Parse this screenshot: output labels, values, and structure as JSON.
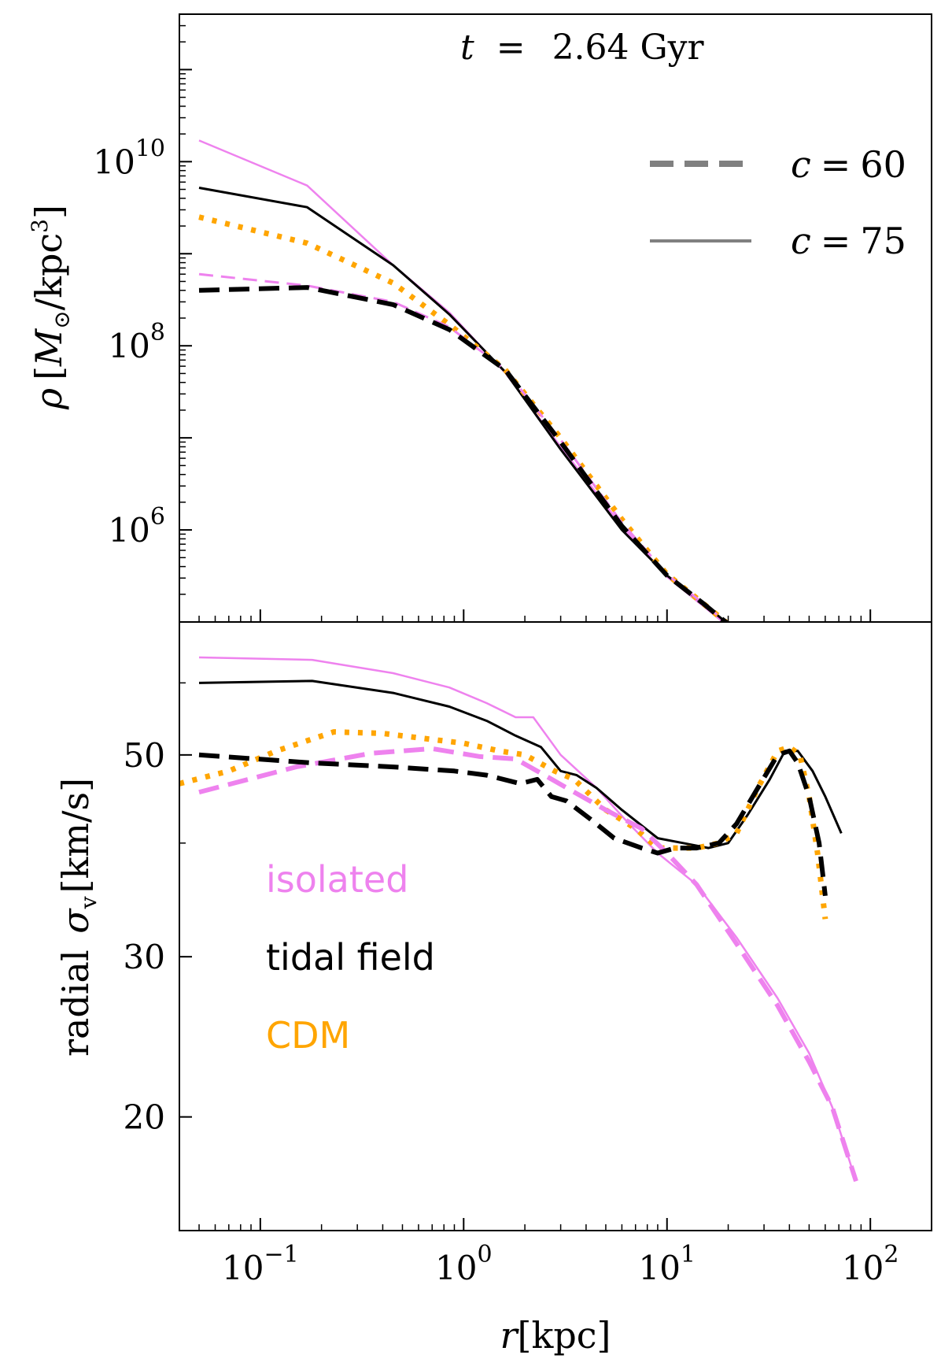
{
  "chart_data": [
    {
      "type": "line",
      "panel": "top",
      "xscale": "log",
      "yscale": "log",
      "xlim": [
        0.04,
        200
      ],
      "ylim": [
        100000,
        400000000000
      ],
      "yticks": [
        {
          "value": 1000000,
          "base": "10",
          "exp": "6"
        },
        {
          "value": 100000000,
          "base": "10",
          "exp": "8"
        },
        {
          "value": 10000000000,
          "base": "10",
          "exp": "10"
        }
      ],
      "ylabel": {
        "symbol": "ρ",
        "unit_prefix": "[",
        "unit_m": "M",
        "unit_sub": "⊙",
        "unit_mid": "/kpc",
        "unit_sup": "3",
        "unit_suffix": "]"
      },
      "annotation": {
        "var": "t",
        "eq": "=",
        "value": "2.64 Gyr"
      },
      "legend": [
        {
          "symbol": "c",
          "eq": "=",
          "value": "60",
          "style": "dashed",
          "color": "#808080"
        },
        {
          "symbol": "c",
          "eq": "=",
          "value": "75",
          "style": "solid",
          "color": "#808080"
        }
      ],
      "series": [
        {
          "name": "isolated c=75",
          "color": "#EE82EE",
          "style": "solid",
          "width": 2.5,
          "x": [
            0.05,
            0.17,
            0.45,
            0.85,
            1.6,
            3.0,
            6.0,
            10,
            15,
            20
          ],
          "y": [
            17000000000,
            5500000000,
            750000000,
            230000000,
            51000000,
            8000000,
            1100000,
            310000,
            150000,
            90000
          ]
        },
        {
          "name": "tidal field c=75",
          "color": "#000000",
          "style": "solid",
          "width": 3,
          "x": [
            0.05,
            0.17,
            0.45,
            0.85,
            1.6,
            3.0,
            6.0,
            10,
            15,
            20
          ],
          "y": [
            5200000000,
            3200000000,
            750000000,
            220000000,
            52000000,
            7500000,
            1000000,
            320000,
            160000,
            95000
          ]
        },
        {
          "name": "CDM",
          "color": "#FFA500",
          "style": "dotted",
          "width": 7,
          "x": [
            0.05,
            0.17,
            0.45,
            0.85,
            1.6,
            3.0,
            6.0,
            10,
            15,
            20
          ],
          "y": [
            2500000000,
            1300000000,
            480000000,
            170000000,
            55000000,
            10000000,
            1300000,
            330000,
            160000,
            95000
          ]
        },
        {
          "name": "isolated c=60",
          "color": "#EE82EE",
          "style": "dashed",
          "width": 3,
          "x": [
            0.05,
            0.17,
            0.45,
            0.85,
            1.6,
            3.0,
            6.0,
            10,
            15,
            20
          ],
          "y": [
            600000000,
            450000000,
            300000000,
            160000000,
            55000000,
            9500000,
            1200000,
            330000,
            160000,
            95000
          ]
        },
        {
          "name": "tidal field c=60",
          "color": "#000000",
          "style": "dashed",
          "width": 6,
          "x": [
            0.05,
            0.17,
            0.45,
            0.85,
            1.6,
            3.0,
            6.0,
            10,
            15,
            20
          ],
          "y": [
            400000000,
            430000000,
            280000000,
            150000000,
            55000000,
            9000000,
            1100000,
            320000,
            160000,
            95000
          ]
        }
      ]
    },
    {
      "type": "line",
      "panel": "bottom",
      "xscale": "log",
      "yscale": "log",
      "xlim": [
        0.04,
        200
      ],
      "ylim": [
        15,
        70
      ],
      "xticks": [
        {
          "value": 0.1,
          "base": "10",
          "exp": "−1"
        },
        {
          "value": 1,
          "base": "10",
          "exp": "0"
        },
        {
          "value": 10,
          "base": "10",
          "exp": "1"
        },
        {
          "value": 100,
          "base": "10",
          "exp": "2"
        }
      ],
      "yticks": [
        {
          "value": 20,
          "label": "20"
        },
        {
          "value": 30,
          "label": "30"
        },
        {
          "value": 50,
          "label": "50"
        }
      ],
      "xlabel": {
        "symbol": "r",
        "unit": "[kpc]"
      },
      "ylabel": {
        "prefix": "radial ",
        "symbol": "σ",
        "sub": "v",
        "unit": "[km/s]"
      },
      "category_labels": [
        {
          "text": "isolated",
          "color": "#EE82EE"
        },
        {
          "text": "tidal field",
          "color": "#000000"
        },
        {
          "text": "CDM",
          "color": "#FFA500"
        }
      ],
      "series": [
        {
          "name": "isolated c=75",
          "color": "#EE82EE",
          "style": "solid",
          "width": 2.5,
          "x": [
            0.05,
            0.18,
            0.45,
            0.85,
            1.3,
            1.8,
            2.2,
            3.0,
            4.5,
            6.5,
            9.0,
            14,
            22,
            35,
            50,
            65,
            85
          ],
          "y": [
            64,
            63.6,
            61.5,
            59.3,
            57,
            55,
            55,
            50,
            46,
            42,
            39,
            36,
            31.5,
            27,
            23.5,
            20.5,
            17
          ]
        },
        {
          "name": "tidal field c=75",
          "color": "#000000",
          "style": "solid",
          "width": 3,
          "x": [
            0.05,
            0.18,
            0.45,
            0.85,
            1.3,
            1.8,
            2.4,
            3.0,
            3.6,
            4.5,
            6.0,
            9.0,
            12,
            16,
            20,
            25,
            32,
            38,
            44,
            52,
            60,
            72
          ],
          "y": [
            60,
            60.3,
            58.5,
            56.5,
            54.5,
            52.5,
            51,
            48,
            47.5,
            46,
            43.5,
            40.5,
            40,
            39.5,
            40,
            43,
            47,
            50.5,
            50.5,
            48,
            45,
            41
          ]
        },
        {
          "name": "CDM",
          "color": "#FFA500",
          "style": "dotted",
          "width": 7,
          "x": [
            0.04,
            0.07,
            0.12,
            0.23,
            0.4,
            0.7,
            1.0,
            1.5,
            2.0,
            2.8,
            3.5,
            5.0,
            7.0,
            9.0,
            11,
            14,
            18,
            22,
            28,
            35,
            40,
            45,
            50,
            55,
            60
          ],
          "y": [
            46.5,
            48,
            50.5,
            53,
            52.8,
            52,
            51.5,
            50.5,
            50,
            48,
            47,
            43.5,
            41.5,
            39.5,
            39.5,
            39.5,
            40,
            41,
            46,
            50.5,
            51,
            50,
            45,
            39,
            33
          ]
        },
        {
          "name": "isolated c=60",
          "color": "#EE82EE",
          "style": "dashed",
          "width": 6,
          "x": [
            0.05,
            0.15,
            0.35,
            0.7,
            1.2,
            1.8,
            2.5,
            3.5,
            5.0,
            7.5,
            10,
            14,
            22,
            35,
            50,
            65,
            85
          ],
          "y": [
            45.5,
            48.5,
            50.2,
            50.8,
            49.8,
            49.5,
            47.5,
            45.5,
            43.5,
            41.5,
            39,
            36,
            31,
            26.5,
            23,
            20.5,
            17
          ]
        },
        {
          "name": "tidal field c=60",
          "color": "#000000",
          "style": "dashed",
          "width": 6,
          "x": [
            0.05,
            0.18,
            0.45,
            0.9,
            1.3,
            1.9,
            2.3,
            2.7,
            3.2,
            4.2,
            5.5,
            7.5,
            9.0,
            11,
            14,
            18,
            22,
            28,
            35,
            40,
            44,
            50,
            56,
            60
          ],
          "y": [
            50,
            49,
            48.5,
            48,
            47.5,
            46.5,
            47,
            45,
            44.5,
            42.5,
            40.5,
            39.5,
            39,
            39.5,
            39.5,
            40,
            42,
            46,
            50,
            50.5,
            49,
            45,
            40,
            35
          ]
        }
      ]
    }
  ]
}
